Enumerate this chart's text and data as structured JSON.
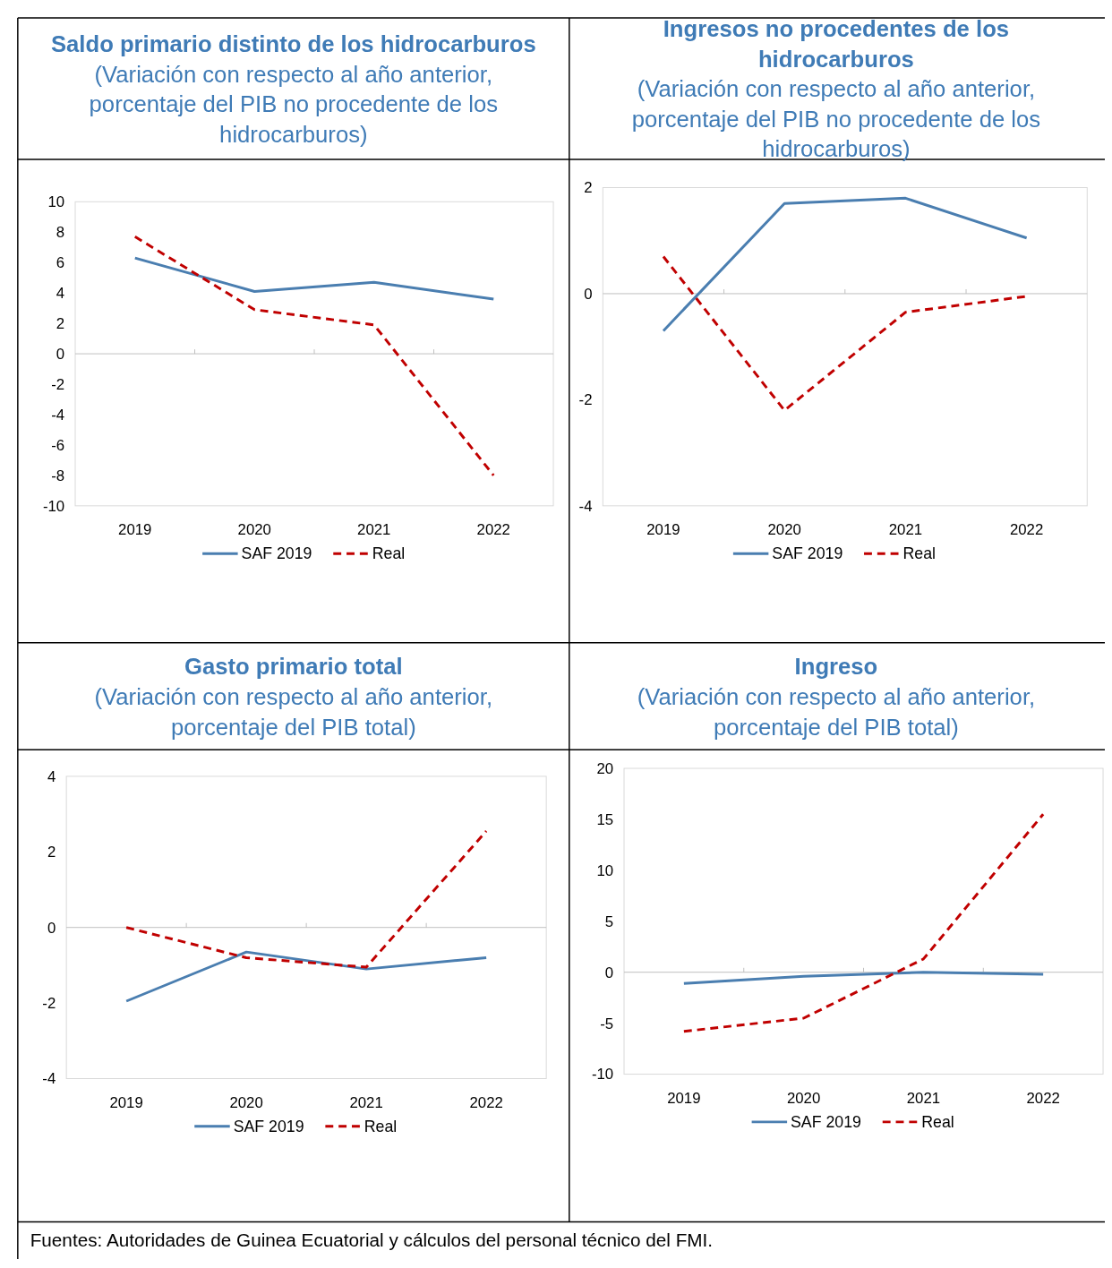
{
  "chart_data": [
    {
      "type": "line",
      "title": "Saldo primario distinto de los hidrocarburos",
      "subtitle": "(Variación con respecto al año anterior, porcentaje del PIB no procedente de los hidrocarburos)",
      "categories": [
        "2019",
        "2020",
        "2021",
        "2022"
      ],
      "series": [
        {
          "name": "SAF 2019",
          "color": "#4a7eb0",
          "line_style": "solid",
          "values": [
            6.3,
            4.1,
            4.7,
            3.6
          ]
        },
        {
          "name": "Real",
          "color": "#c00000",
          "line_style": "dashed",
          "values": [
            7.7,
            2.9,
            1.9,
            -8.0
          ]
        }
      ],
      "ylim": [
        -10,
        10
      ],
      "yticks": [
        -10,
        -8,
        -6,
        -4,
        -2,
        0,
        2,
        4,
        6,
        8,
        10
      ],
      "legend": "bottom"
    },
    {
      "type": "line",
      "title": "Ingresos no procedentes de los hidrocarburos",
      "subtitle": "(Variación con respecto al año anterior, porcentaje del PIB no procedente de los hidrocarburos)",
      "categories": [
        "2019",
        "2020",
        "2021",
        "2022"
      ],
      "series": [
        {
          "name": "SAF 2019",
          "color": "#4a7eb0",
          "line_style": "solid",
          "values": [
            -0.7,
            1.7,
            1.8,
            1.05
          ]
        },
        {
          "name": "Real",
          "color": "#c00000",
          "line_style": "dashed",
          "values": [
            0.7,
            -2.2,
            -0.35,
            -0.05
          ]
        }
      ],
      "ylim": [
        -4,
        2
      ],
      "yticks": [
        -4,
        -2,
        0,
        2
      ],
      "legend": "bottom"
    },
    {
      "type": "line",
      "title": "Gasto primario total",
      "subtitle": "(Variación con respecto al año anterior, porcentaje del PIB total)",
      "categories": [
        "2019",
        "2020",
        "2021",
        "2022"
      ],
      "series": [
        {
          "name": "SAF 2019",
          "color": "#4a7eb0",
          "line_style": "solid",
          "values": [
            -1.95,
            -0.65,
            -1.1,
            -0.8
          ]
        },
        {
          "name": "Real",
          "color": "#c00000",
          "line_style": "dashed",
          "values": [
            0,
            -0.8,
            -1.05,
            2.55
          ]
        }
      ],
      "ylim": [
        -4,
        4
      ],
      "yticks": [
        -4,
        -2,
        0,
        2,
        4
      ],
      "legend": "bottom"
    },
    {
      "type": "line",
      "title": "Ingreso",
      "subtitle": "(Variación con respecto al año anterior, porcentaje del PIB total)",
      "categories": [
        "2019",
        "2020",
        "2021",
        "2022"
      ],
      "series": [
        {
          "name": "SAF 2019",
          "color": "#4a7eb0",
          "line_style": "solid",
          "values": [
            -1.1,
            -0.4,
            0,
            -0.2
          ]
        },
        {
          "name": "Real",
          "color": "#c00000",
          "line_style": "dashed",
          "values": [
            -5.8,
            -4.5,
            1.3,
            15.5
          ]
        }
      ],
      "ylim": [
        -10,
        20
      ],
      "yticks": [
        -10,
        -5,
        0,
        5,
        10,
        15,
        20
      ],
      "legend": "bottom",
      "annotations": [
        "Fuentes: Autoridades de Guinea Ecuatorial y cálculos del personal técnico del FMI."
      ]
    }
  ]
}
